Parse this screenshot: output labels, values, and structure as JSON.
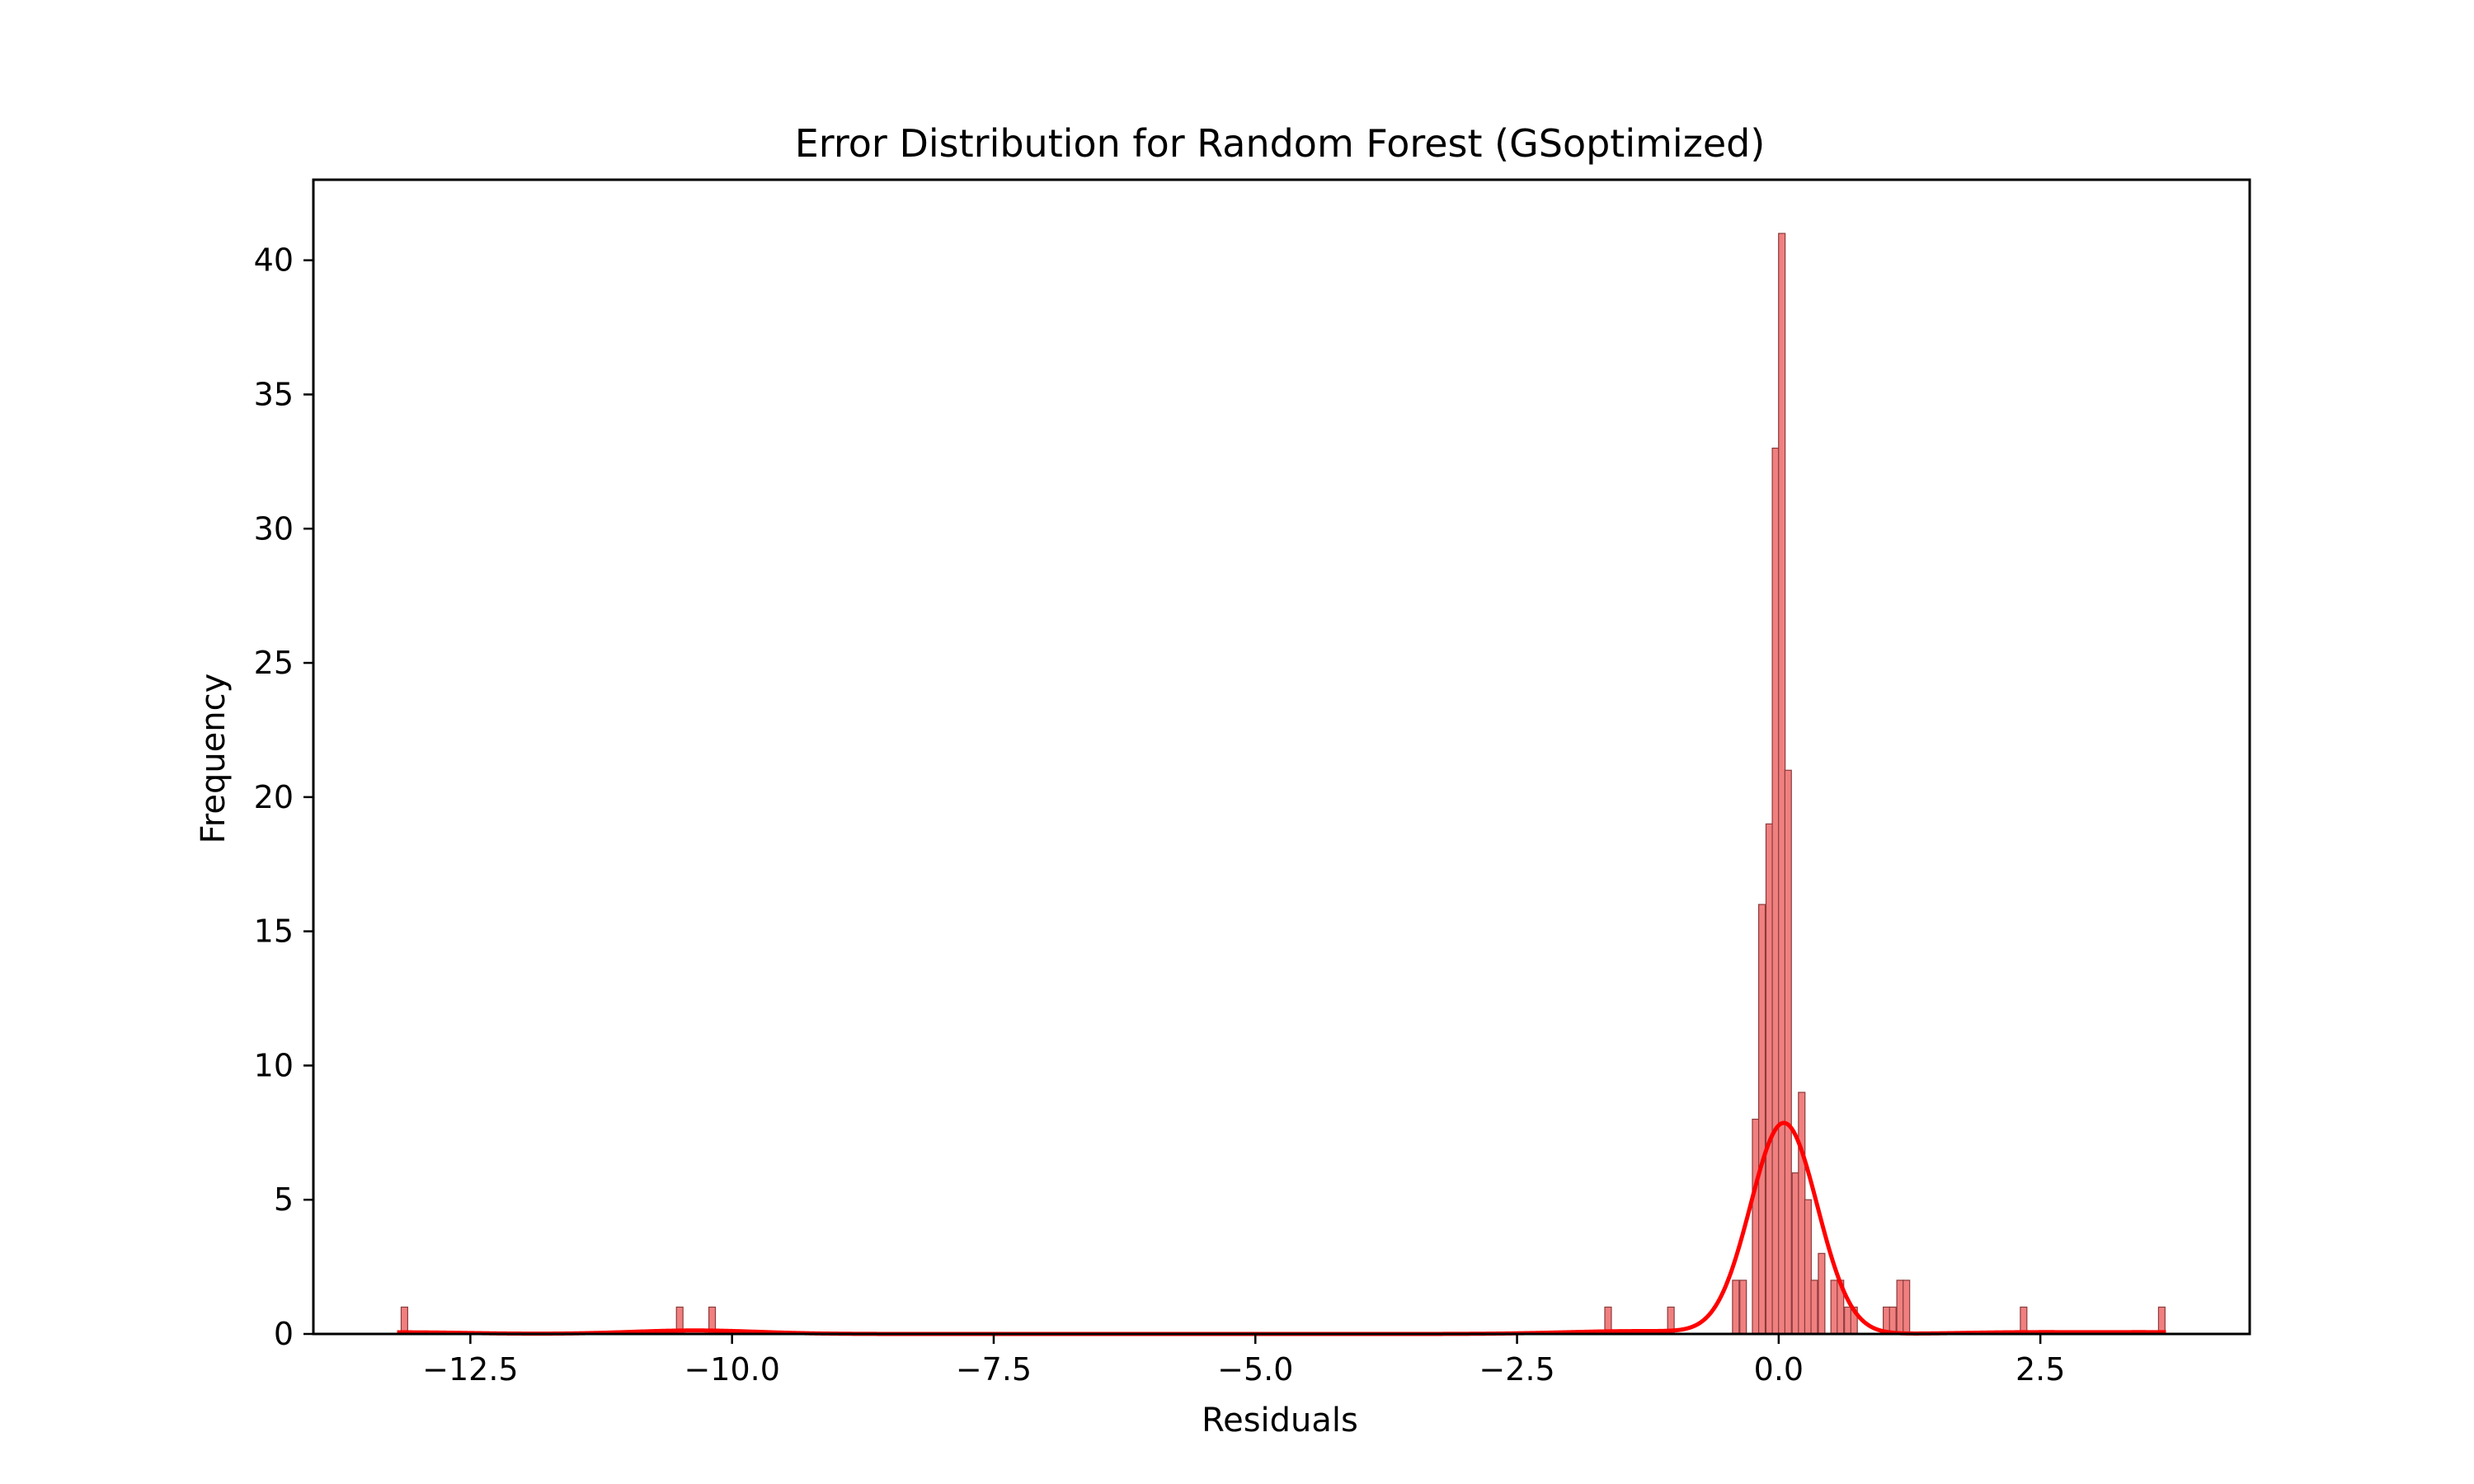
{
  "chart_data": {
    "type": "bar",
    "title": "Error Distribution for Random Forest (GSoptimized)",
    "xlabel": "Residuals",
    "ylabel": "Frequency",
    "xlim": [
      -14.0,
      4.5
    ],
    "ylim": [
      0,
      43
    ],
    "bin_width": 0.0625,
    "x_ticks": [
      {
        "value": -12.5,
        "label": "−12.5"
      },
      {
        "value": -10.0,
        "label": "−10.0"
      },
      {
        "value": -7.5,
        "label": "−7.5"
      },
      {
        "value": -5.0,
        "label": "−5.0"
      },
      {
        "value": -2.5,
        "label": "−2.5"
      },
      {
        "value": 0.0,
        "label": "0.0"
      },
      {
        "value": 2.5,
        "label": "2.5"
      }
    ],
    "y_ticks": [
      {
        "value": 0,
        "label": "0"
      },
      {
        "value": 5,
        "label": "5"
      },
      {
        "value": 10,
        "label": "10"
      },
      {
        "value": 15,
        "label": "15"
      },
      {
        "value": 20,
        "label": "20"
      },
      {
        "value": 25,
        "label": "25"
      },
      {
        "value": 30,
        "label": "30"
      },
      {
        "value": 35,
        "label": "35"
      },
      {
        "value": 40,
        "label": "40"
      }
    ],
    "bins": [
      {
        "x": -13.13,
        "count": 1
      },
      {
        "x": -10.5,
        "count": 1
      },
      {
        "x": -10.19,
        "count": 1
      },
      {
        "x": -1.63,
        "count": 1
      },
      {
        "x": -1.03,
        "count": 1
      },
      {
        "x": -0.41,
        "count": 2
      },
      {
        "x": -0.34,
        "count": 2
      },
      {
        "x": -0.22,
        "count": 8
      },
      {
        "x": -0.16,
        "count": 16
      },
      {
        "x": -0.09,
        "count": 19
      },
      {
        "x": -0.03,
        "count": 33
      },
      {
        "x": 0.03,
        "count": 41
      },
      {
        "x": 0.09,
        "count": 21
      },
      {
        "x": 0.16,
        "count": 6
      },
      {
        "x": 0.22,
        "count": 9
      },
      {
        "x": 0.28,
        "count": 5
      },
      {
        "x": 0.34,
        "count": 2
      },
      {
        "x": 0.41,
        "count": 3
      },
      {
        "x": 0.53,
        "count": 2
      },
      {
        "x": 0.59,
        "count": 2
      },
      {
        "x": 0.66,
        "count": 1
      },
      {
        "x": 0.72,
        "count": 1
      },
      {
        "x": 1.03,
        "count": 1
      },
      {
        "x": 1.09,
        "count": 1
      },
      {
        "x": 1.16,
        "count": 2
      },
      {
        "x": 1.22,
        "count": 2
      },
      {
        "x": 2.34,
        "count": 1
      },
      {
        "x": 3.66,
        "count": 1
      }
    ],
    "kde": {
      "components": [
        {
          "mu": 0.05,
          "sigma": 0.32,
          "amp": 7.85
        },
        {
          "mu": -10.35,
          "sigma": 0.6,
          "amp": 0.13
        },
        {
          "mu": -13.13,
          "sigma": 0.6,
          "amp": 0.06
        },
        {
          "mu": 2.34,
          "sigma": 0.6,
          "amp": 0.06
        },
        {
          "mu": 3.66,
          "sigma": 0.6,
          "amp": 0.06
        },
        {
          "mu": -1.63,
          "sigma": 0.6,
          "amp": 0.06
        },
        {
          "mu": -1.03,
          "sigma": 0.6,
          "amp": 0.06
        }
      ],
      "x_range": [
        -13.2,
        3.7
      ]
    },
    "colors": {
      "bar_fill": "#f08080",
      "bar_edge": "#8b3a3a",
      "kde_line": "#ff0000",
      "axis": "#000000"
    },
    "grid": false,
    "legend": "none"
  }
}
